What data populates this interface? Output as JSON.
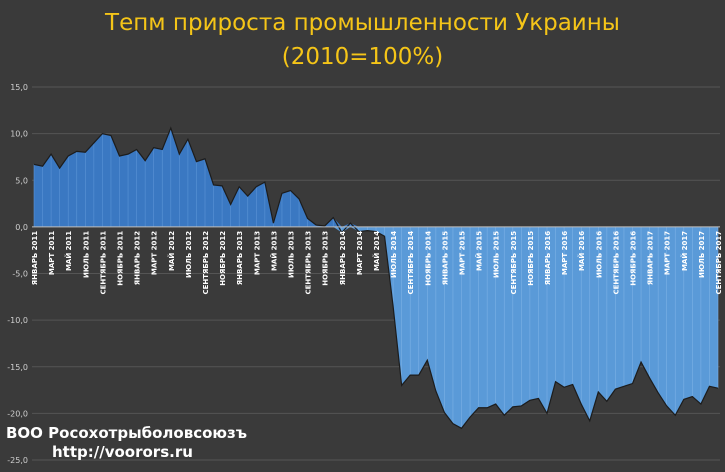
{
  "chart_data": {
    "type": "area",
    "title": "Тепм прироста промышленности Украины",
    "subtitle": "(2010=100%)",
    "xlabel": "",
    "ylabel": "",
    "ylim": [
      -25,
      15
    ],
    "y_ticks": [
      "15,0",
      "10,0",
      "5,0",
      "0,0",
      "-5,0",
      "-10,0",
      "-15,0",
      "-20,0",
      "-25,0"
    ],
    "y_tick_values": [
      15,
      10,
      5,
      0,
      -5,
      -10,
      -15,
      -20,
      -25
    ],
    "grid": true,
    "legend": "none",
    "colors": {
      "positive": "#3a78c2",
      "negative": "#5a9ad8",
      "line": "#1c1c1c",
      "grid": "#555555",
      "axis": "#cfcfcf"
    },
    "categories": [
      "ЯНВАРЬ 2011",
      "",
      "МАРТ 2011",
      "",
      "МАЙ 2011",
      "",
      "ИЮЛЬ 2011",
      "",
      "СЕНТЯБРЬ 2011",
      "",
      "НОЯБРЬ 2011",
      "",
      "ЯНВАРЬ 2012",
      "",
      "МАРТ 2012",
      "",
      "МАЙ 2012",
      "",
      "ИЮЛЬ 2012",
      "",
      "СЕНТЯБРЬ 2012",
      "",
      "НОЯБРЬ 2012",
      "",
      "ЯНВАРЬ 2013",
      "",
      "МАРТ 2013",
      "",
      "МАЙ 2013",
      "",
      "ИЮЛЬ 2013",
      "",
      "СЕНТЯБРЬ 2013",
      "",
      "НОЯБРЬ 2013",
      "",
      "ЯНВАРЬ 2014",
      "",
      "МАРТ 2014",
      "",
      "МАЙ 2014",
      "",
      "ИЮЛЬ 2014",
      "",
      "СЕНТЯБРЬ 2014",
      "",
      "НОЯБРЬ 2014",
      "",
      "ЯНВАРЬ 2015",
      "",
      "МАРТ 2015",
      "",
      "МАЙ 2015",
      "",
      "ИЮЛЬ 2015",
      "",
      "СЕНТЯБРЬ 2015",
      "",
      "НОЯБРЬ 2015",
      "",
      "ЯНВАРЬ 2016",
      "",
      "МАРТ 2016",
      "",
      "МАЙ 2016",
      "",
      "ИЮЛЬ 2016",
      "",
      "СЕНТЯБРЬ 2016",
      "",
      "НОЯБРЬ 2016",
      "",
      "ЯНВАРЬ 2017",
      "",
      "МАРТ 2017",
      "",
      "МАЙ 2017",
      "",
      "ИЮЛЬ 2017",
      "",
      "СЕНТЯБРЬ 2017"
    ],
    "values": [
      6.7,
      6.5,
      7.8,
      6.3,
      7.6,
      8.1,
      8.0,
      9.0,
      10.0,
      9.8,
      7.6,
      7.8,
      8.3,
      7.1,
      8.5,
      8.3,
      10.6,
      7.8,
      9.4,
      7.0,
      7.3,
      4.5,
      4.4,
      2.4,
      4.3,
      3.3,
      4.3,
      4.8,
      0.4,
      3.6,
      3.9,
      3.0,
      0.9,
      0.2,
      0.1,
      1.0,
      -0.6,
      0.4,
      -0.5,
      -0.4,
      -0.5,
      -1.0,
      -8.5,
      -17.0,
      -15.9,
      -15.9,
      -14.3,
      -17.6,
      -19.9,
      -21.1,
      -21.6,
      -20.4,
      -19.4,
      -19.4,
      -19.0,
      -20.2,
      -19.3,
      -19.2,
      -18.6,
      -18.4,
      -20.0,
      -16.6,
      -17.2,
      -16.9,
      -19.0,
      -20.8,
      -17.7,
      -18.7,
      -17.4,
      -17.1,
      -16.8,
      -14.5,
      -16.2,
      -17.8,
      -19.2,
      -20.2,
      -18.5,
      -18.2,
      -19.0,
      -17.1,
      -17.3
    ]
  },
  "watermark": {
    "line1": "ВОО Росохотрыболовсоюзъ",
    "line2": "http://voorors.ru"
  }
}
